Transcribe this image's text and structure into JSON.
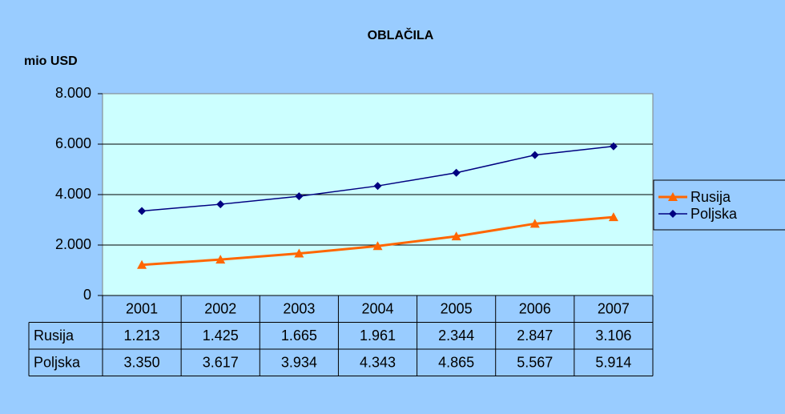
{
  "chart_data": {
    "type": "line",
    "title": "OBLAČILA",
    "y_label": "mio USD",
    "categories": [
      "2001",
      "2002",
      "2003",
      "2004",
      "2005",
      "2006",
      "2007"
    ],
    "series": [
      {
        "name": "Rusija",
        "color": "#ff6600",
        "marker": "triangle",
        "values": [
          1213,
          1425,
          1665,
          1961,
          2344,
          2847,
          3106
        ],
        "value_labels": [
          "1.213",
          "1.425",
          "1.665",
          "1.961",
          "2.344",
          "2.847",
          "3.106"
        ]
      },
      {
        "name": "Poljska",
        "color": "#000080",
        "marker": "diamond",
        "values": [
          3350,
          3617,
          3934,
          4343,
          4865,
          5567,
          5914
        ],
        "value_labels": [
          "3.350",
          "3.617",
          "3.934",
          "4.343",
          "4.865",
          "5.567",
          "5.914"
        ]
      }
    ],
    "ylim": [
      0,
      8000
    ],
    "yticks": [
      0,
      {
        "value": 2000,
        "label": "2.000"
      },
      {
        "value": 4000,
        "label": "4.000"
      },
      {
        "value": 6000,
        "label": "6.000"
      },
      {
        "value": 8000,
        "label": "8.000"
      }
    ],
    "grid": true,
    "legend": "right"
  }
}
